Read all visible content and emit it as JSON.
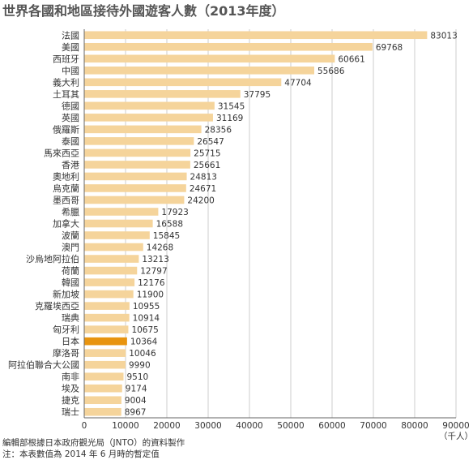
{
  "chart_data": {
    "type": "bar",
    "orientation": "horizontal",
    "title": "世界各國和地區接待外國遊客人數（2013年度）",
    "unit_label": "（千人）",
    "categories": [
      "法國",
      "美國",
      "西班牙",
      "中國",
      "義大利",
      "土耳其",
      "德國",
      "英國",
      "俄羅斯",
      "泰國",
      "馬來西亞",
      "香港",
      "奧地利",
      "烏克蘭",
      "墨西哥",
      "希臘",
      "加拿大",
      "波蘭",
      "澳門",
      "沙烏地阿拉伯",
      "荷蘭",
      "韓國",
      "新加坡",
      "克羅埃西亞",
      "瑞典",
      "匈牙利",
      "日本",
      "摩洛哥",
      "阿拉伯聯合大公國",
      "南非",
      "埃及",
      "捷克",
      "瑞士"
    ],
    "values": [
      83013,
      69768,
      60661,
      55686,
      47704,
      37795,
      31545,
      31169,
      28356,
      26547,
      25715,
      25661,
      24813,
      24671,
      24200,
      17923,
      16588,
      15845,
      14268,
      13213,
      12797,
      12176,
      11900,
      10955,
      10914,
      10675,
      10364,
      10046,
      9990,
      9510,
      9174,
      9004,
      8967
    ],
    "highlight_category": "日本",
    "xlim": [
      0,
      90000
    ],
    "xticks": [
      0,
      10000,
      20000,
      30000,
      40000,
      50000,
      60000,
      70000,
      80000,
      90000
    ],
    "grid": true,
    "colors": {
      "bar": "#f5d49b",
      "highlight": "#e8940f",
      "grid": "#cccccc",
      "axis": "#666666"
    }
  },
  "notes": [
    "編輯部根據日本政府觀光局（JNTO）的資料製作",
    "注：本表數值為 2014 年 6 月時的暫定值"
  ]
}
